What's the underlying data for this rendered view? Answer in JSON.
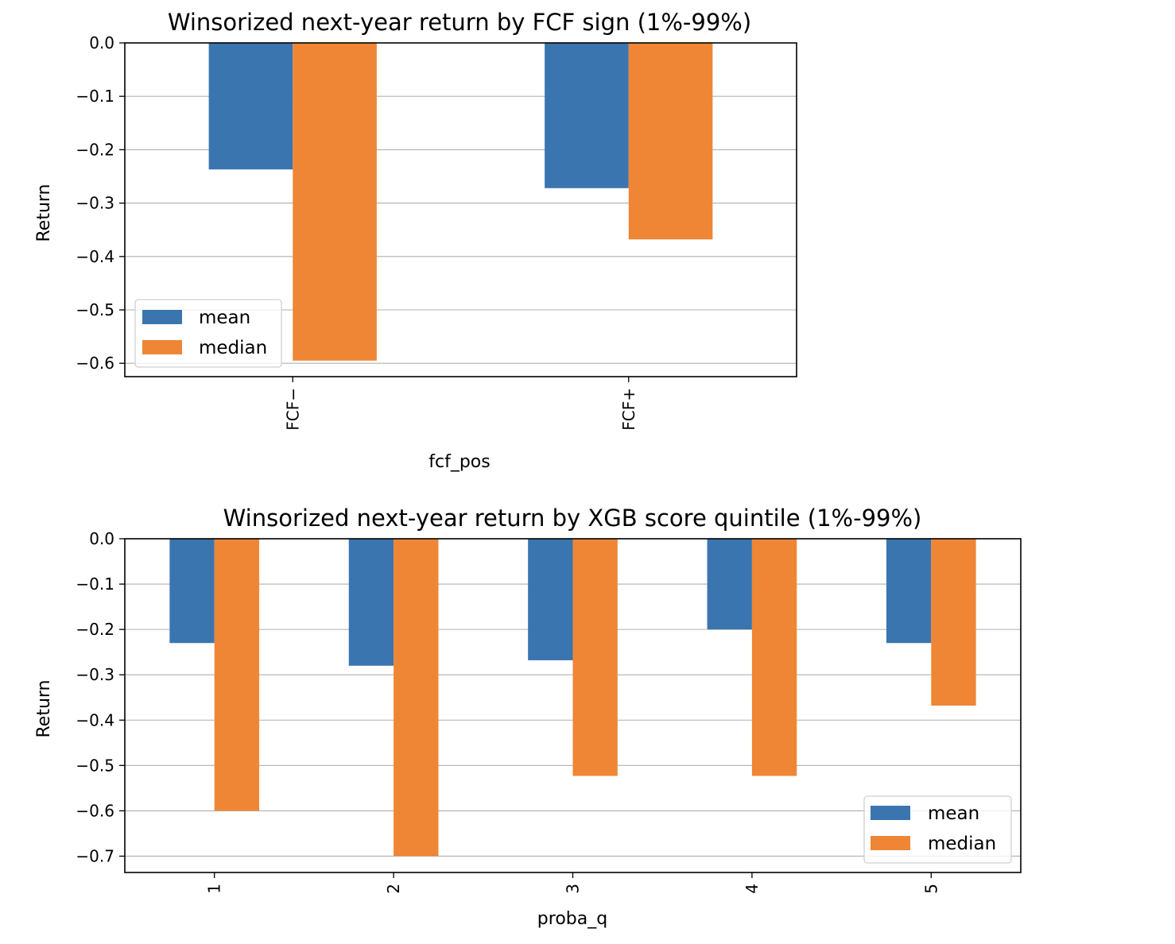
{
  "chart_data": [
    {
      "type": "bar",
      "title": "Winsorized next-year return by FCF sign (1%-99%)",
      "xlabel": "fcf_pos",
      "ylabel": "Return",
      "categories": [
        "FCF−",
        "FCF+"
      ],
      "series": [
        {
          "name": "mean",
          "values": [
            -0.237,
            -0.272
          ]
        },
        {
          "name": "median",
          "values": [
            -0.595,
            -0.368
          ]
        }
      ],
      "ylim": [
        -0.625,
        0.0
      ],
      "yticks": [
        0.0,
        -0.1,
        -0.2,
        -0.3,
        -0.4,
        -0.5,
        -0.6
      ],
      "ytick_labels": [
        "0.0",
        "−0.1",
        "−0.2",
        "−0.3",
        "−0.4",
        "−0.5",
        "−0.6"
      ],
      "xtick_rotation": "vertical",
      "grid": "horizontal",
      "legend": "lower-left",
      "colors": [
        "#3a75af",
        "#ef8636"
      ]
    },
    {
      "type": "bar",
      "title": "Winsorized next-year return by XGB score quintile (1%-99%)",
      "xlabel": "proba_q",
      "ylabel": "Return",
      "categories": [
        "1",
        "2",
        "3",
        "4",
        "5"
      ],
      "series": [
        {
          "name": "mean",
          "values": [
            -0.23,
            -0.28,
            -0.268,
            -0.2,
            -0.23
          ]
        },
        {
          "name": "median",
          "values": [
            -0.6,
            -0.7,
            -0.523,
            -0.523,
            -0.368
          ]
        }
      ],
      "ylim": [
        -0.736,
        0.0
      ],
      "yticks": [
        0.0,
        -0.1,
        -0.2,
        -0.3,
        -0.4,
        -0.5,
        -0.6,
        -0.7
      ],
      "ytick_labels": [
        "0.0",
        "−0.1",
        "−0.2",
        "−0.3",
        "−0.4",
        "−0.5",
        "−0.6",
        "−0.7"
      ],
      "xtick_rotation": "vertical",
      "grid": "horizontal",
      "legend": "lower-right",
      "colors": [
        "#3a75af",
        "#ef8636"
      ]
    }
  ]
}
